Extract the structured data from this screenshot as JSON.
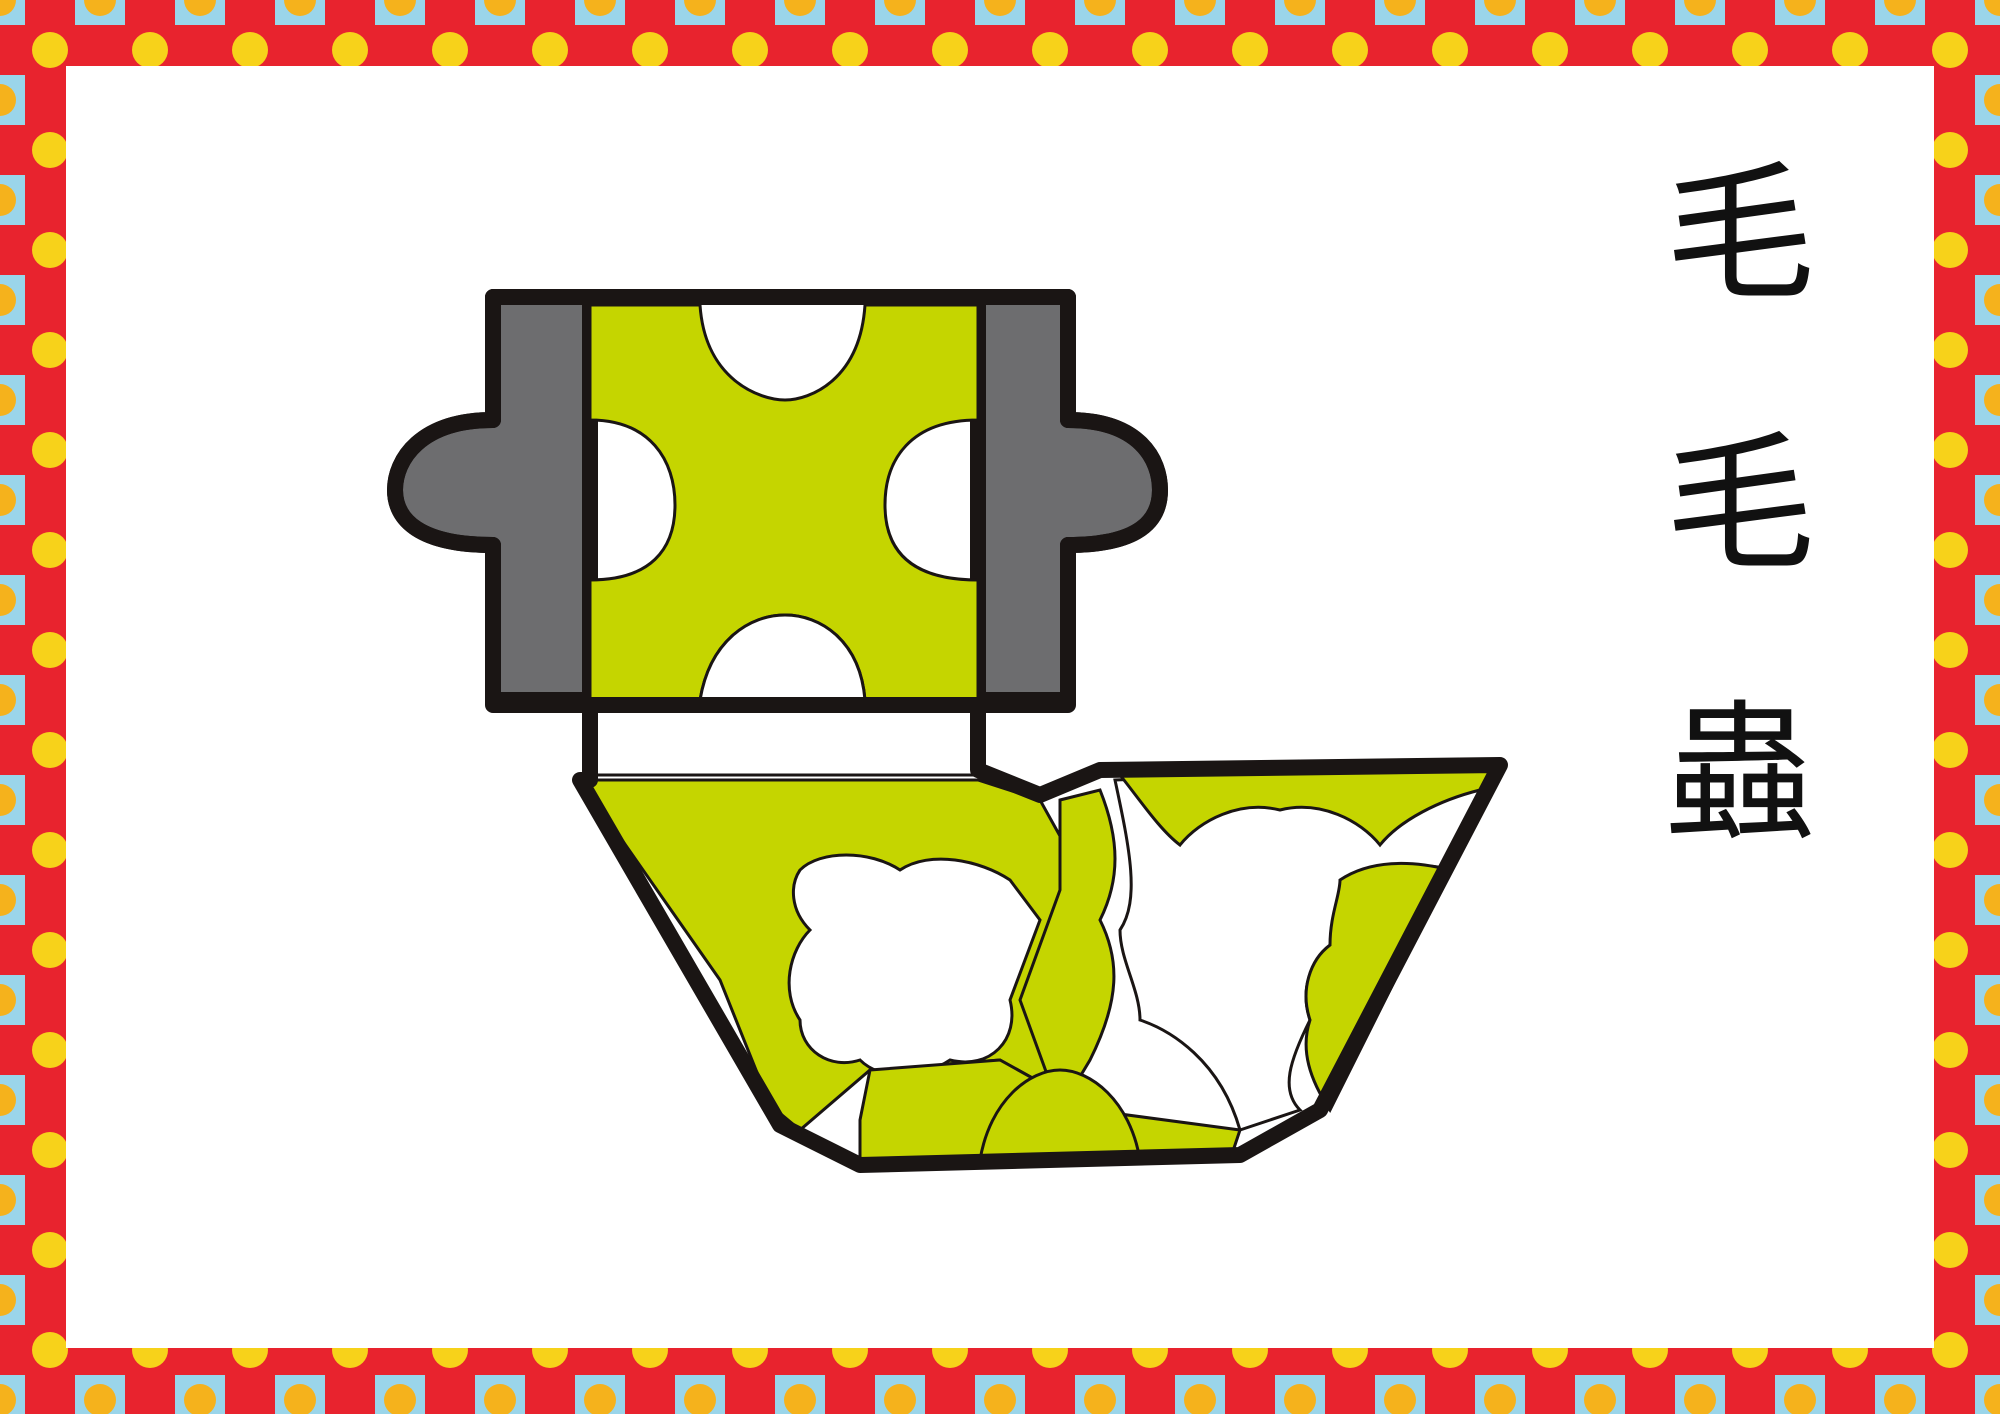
{
  "card": {
    "title_chars": [
      "毛",
      "毛",
      "蟲"
    ]
  },
  "colors": {
    "frame_pattern": [
      "#e8232e",
      "#f7d21a",
      "#9ad5ea",
      "#f5b21c"
    ],
    "tile_green": "#c5d500",
    "tile_gray": "#6d6d6f",
    "outline": "#1a1514",
    "background": "#ffffff"
  },
  "puzzle": {
    "piece_count": 6,
    "pieces": [
      {
        "name": "cross-center",
        "color": "green"
      },
      {
        "name": "left-cap",
        "color": "gray"
      },
      {
        "name": "right-cap",
        "color": "gray"
      },
      {
        "name": "neck-piece",
        "color": "green"
      },
      {
        "name": "body-left",
        "color": "green"
      },
      {
        "name": "body-right",
        "color": "green"
      }
    ]
  }
}
